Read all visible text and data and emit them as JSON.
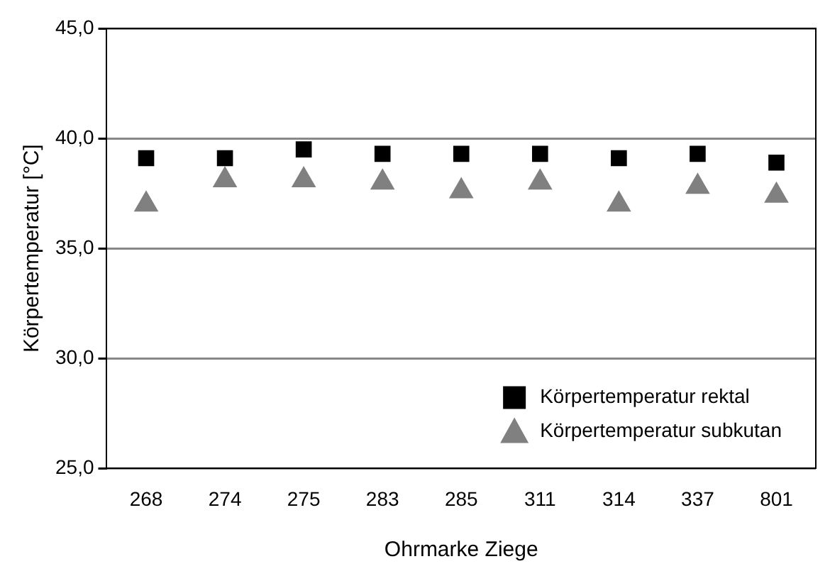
{
  "chart_data": {
    "type": "scatter",
    "xlabel": "Ohrmarke Ziege",
    "ylabel": "Körpertemperatur [°C]",
    "categories": [
      "268",
      "274",
      "275",
      "283",
      "285",
      "311",
      "314",
      "337",
      "801"
    ],
    "series": [
      {
        "name": "Körpertemperatur rektal",
        "color": "#000000",
        "marker": "square",
        "values": [
          39.1,
          39.1,
          39.5,
          39.3,
          39.3,
          39.3,
          39.1,
          39.3,
          38.9
        ]
      },
      {
        "name": "Körpertemperatur subkutan",
        "color": "#808080",
        "marker": "triangle",
        "values": [
          37.0,
          38.1,
          38.1,
          38.0,
          37.6,
          38.0,
          37.0,
          37.8,
          37.4
        ]
      }
    ],
    "ylim": [
      25,
      45
    ],
    "yticks": [
      {
        "value": 25,
        "label": "25,0"
      },
      {
        "value": 30,
        "label": "30,0"
      },
      {
        "value": 35,
        "label": "35,0"
      },
      {
        "value": 40,
        "label": "40,0"
      },
      {
        "value": 45,
        "label": "45,0"
      }
    ],
    "grid": "y",
    "legend": "bottom right"
  }
}
